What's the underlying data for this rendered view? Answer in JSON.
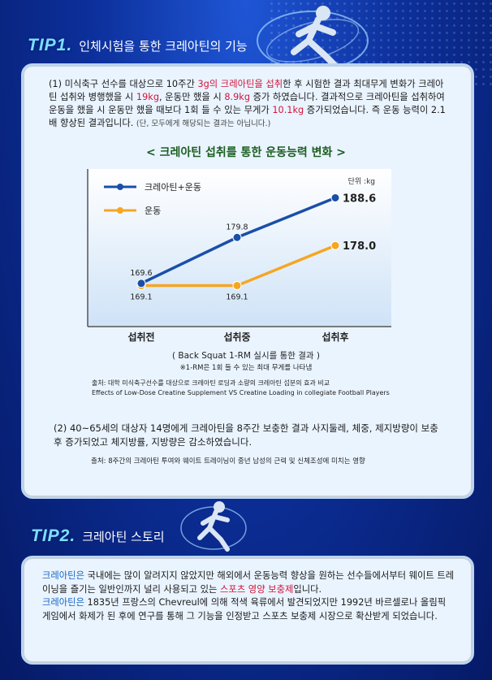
{
  "tip1": {
    "tag": "TIP1.",
    "title": "인체시험을 통한 크레아틴의 기능",
    "para1_segments": [
      "(1) 미식축구 선수를 대상으로 10주간 ",
      "3g의 크레아틴을 섭취",
      "한 후 시험한 결과 최대무게 변화가 크레아틴 섭취와 병행했을 시 ",
      "19kg",
      ", 운동만 했을 시 ",
      "8.9kg",
      " 증가 하였습니다. 결과적으로 크레아틴을 섭취하여 운동을 했을 시 운동만 했을 때보다 1회 들 수 있는 무게가 ",
      "10.1kg",
      " 증가되었습니다. 즉 운동 능력이 2.1배 향상된 결과입니다. "
    ],
    "para1_note": "(단, 모두에게 해당되는 결과는 아닙니다.)",
    "chart_title": "< 크레아틴 섭취를 통한 운동능력 변화 >",
    "caption": "( Back Squat 1-RM 실시를 통한 결과 )",
    "caption_note": "※1-RM은 1회 들 수 있는 최대 무게를 나타냄",
    "source_line1": "출처: 대학 미식축구선수를 대상으로 크레아틴 로딩과 소량의 크레아틴 섭분의 효과 비교",
    "source_line2": "Effects of Low-Dose Creatine Supplement VS Creatine Loading in collegiate Football Players",
    "para2": "(2) 40~65세의 대상자 14명에게 크레아틴을 8주간 보충한 결과 사지둘레, 체중, 제지방량이 보충후 증가되었고 체지방률, 지방량은 감소하였습니다.",
    "source2": "출처: 8주간의 크레아틴 투여와 웨이트 트레이닝이 중년 남성의 근력 및 신체조성에 미치는 영향"
  },
  "tip2": {
    "tag": "TIP2.",
    "title": "크레아틴 스토리",
    "para_segments": [
      "크레아틴은",
      " 국내에는 많이 알려지지 않았지만 해외에서 운동능력 향상을 원하는 선수들에서부터 웨이트 트레이닝을 즐기는 일반인까지 널리 사용되고 있는 ",
      "스포츠 영양 보충제",
      "입니다."
    ],
    "para2_segments": [
      "크레아틴은",
      " 1835년 프랑스의 Chevreul에 의해 적색 육류에서 발견되었지만 1992년 바르셀로나 올림픽 게임에서 화제가 된 후에 연구를 통해 그 기능을 인정받고 스포츠 보충제 시장으로 확산받게 되었습니다."
    ]
  },
  "colors": {
    "background": "#0c2f9a",
    "card": "#eaf4ff",
    "series_creatine": "#1a4fa8",
    "series_exercise": "#f5a623",
    "highlight_red": "#d2143a",
    "highlight_blue": "#1565c0"
  },
  "chart_data": {
    "type": "line",
    "categories": [
      "섭취전",
      "섭취중",
      "섭취후"
    ],
    "unit": "단위 :kg",
    "series": [
      {
        "name": "크레아틴+운동",
        "values": [
          169.6,
          179.8,
          188.6
        ],
        "labels": [
          "169.6",
          "179.8",
          "188.6"
        ],
        "color": "#1a4fa8"
      },
      {
        "name": "운동",
        "values": [
          169.1,
          169.1,
          178.0
        ],
        "labels": [
          "169.1",
          "169.1",
          "178.0"
        ],
        "color": "#f5a623"
      }
    ],
    "ylim": [
      160,
      195
    ],
    "grid": false,
    "legend": "top-left"
  }
}
